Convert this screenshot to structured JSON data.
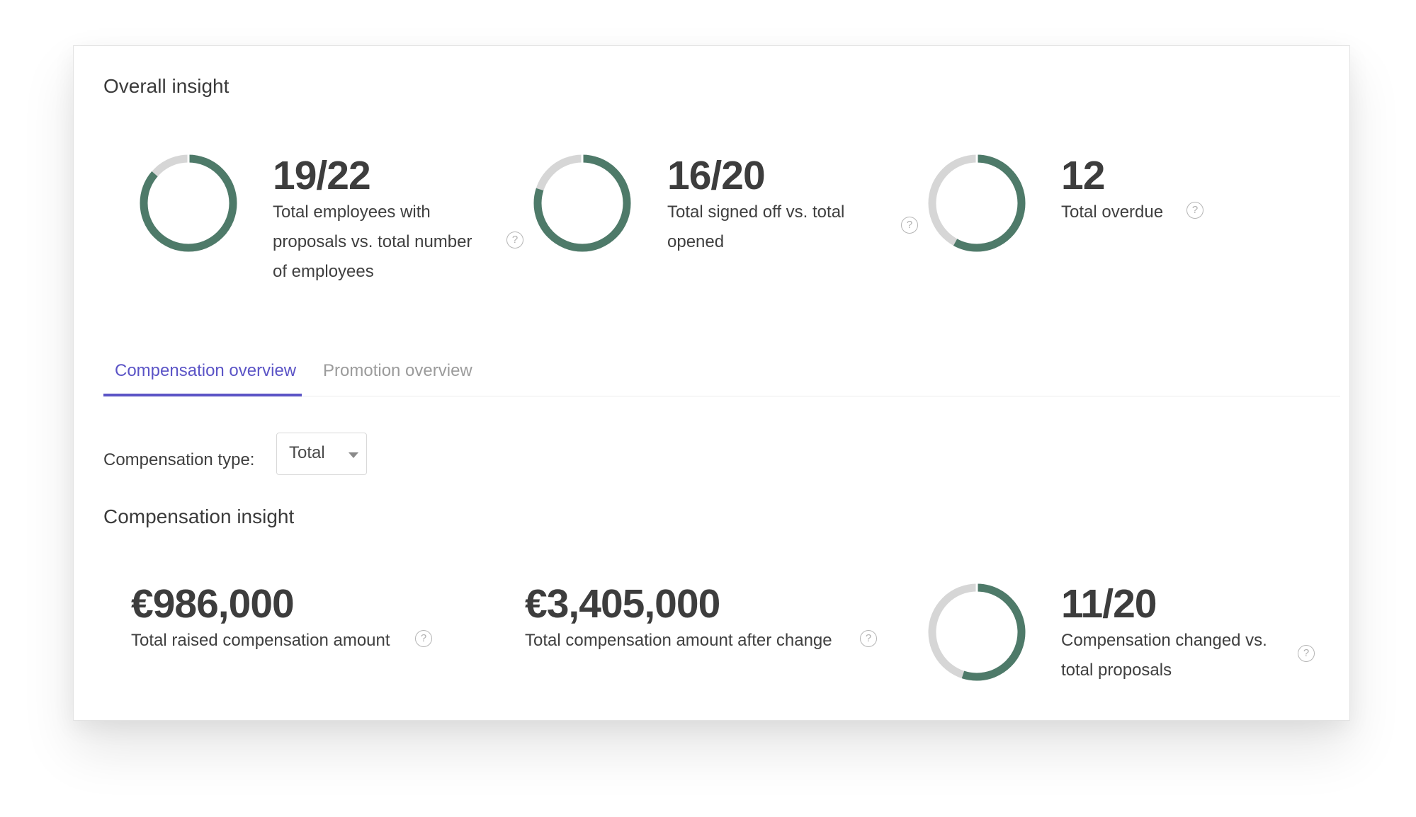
{
  "overall": {
    "title": "Overall insight",
    "metrics": [
      {
        "value": "19/22",
        "description": "Total employees with proposals vs. total number of employees",
        "fraction": 0.8636
      },
      {
        "value": "16/20",
        "description": "Total signed off vs. total opened",
        "fraction": 0.8
      },
      {
        "value": "12",
        "description": "Total overdue",
        "fraction": 0.58
      }
    ]
  },
  "tabs": [
    {
      "label": "Compensation overview",
      "active": true
    },
    {
      "label": "Promotion overview",
      "active": false
    }
  ],
  "filter": {
    "label": "Compensation type:",
    "selected": "Total"
  },
  "compensation": {
    "title": "Compensation insight",
    "metrics": [
      {
        "value": "€986,000",
        "description": "Total raised compensation amount"
      },
      {
        "value": "€3,405,000",
        "description": "Total compensation amount after change"
      },
      {
        "value": "11/20",
        "description": "Compensation changed vs. total proposals",
        "fraction": 0.55
      }
    ]
  },
  "help_symbol": "?",
  "colors": {
    "donut_fill": "#4e7a69",
    "donut_track": "#d6d6d6",
    "accent": "#5b54c6"
  },
  "icons": {
    "help": "question-circle-icon",
    "dropdown": "caret-down-icon"
  }
}
